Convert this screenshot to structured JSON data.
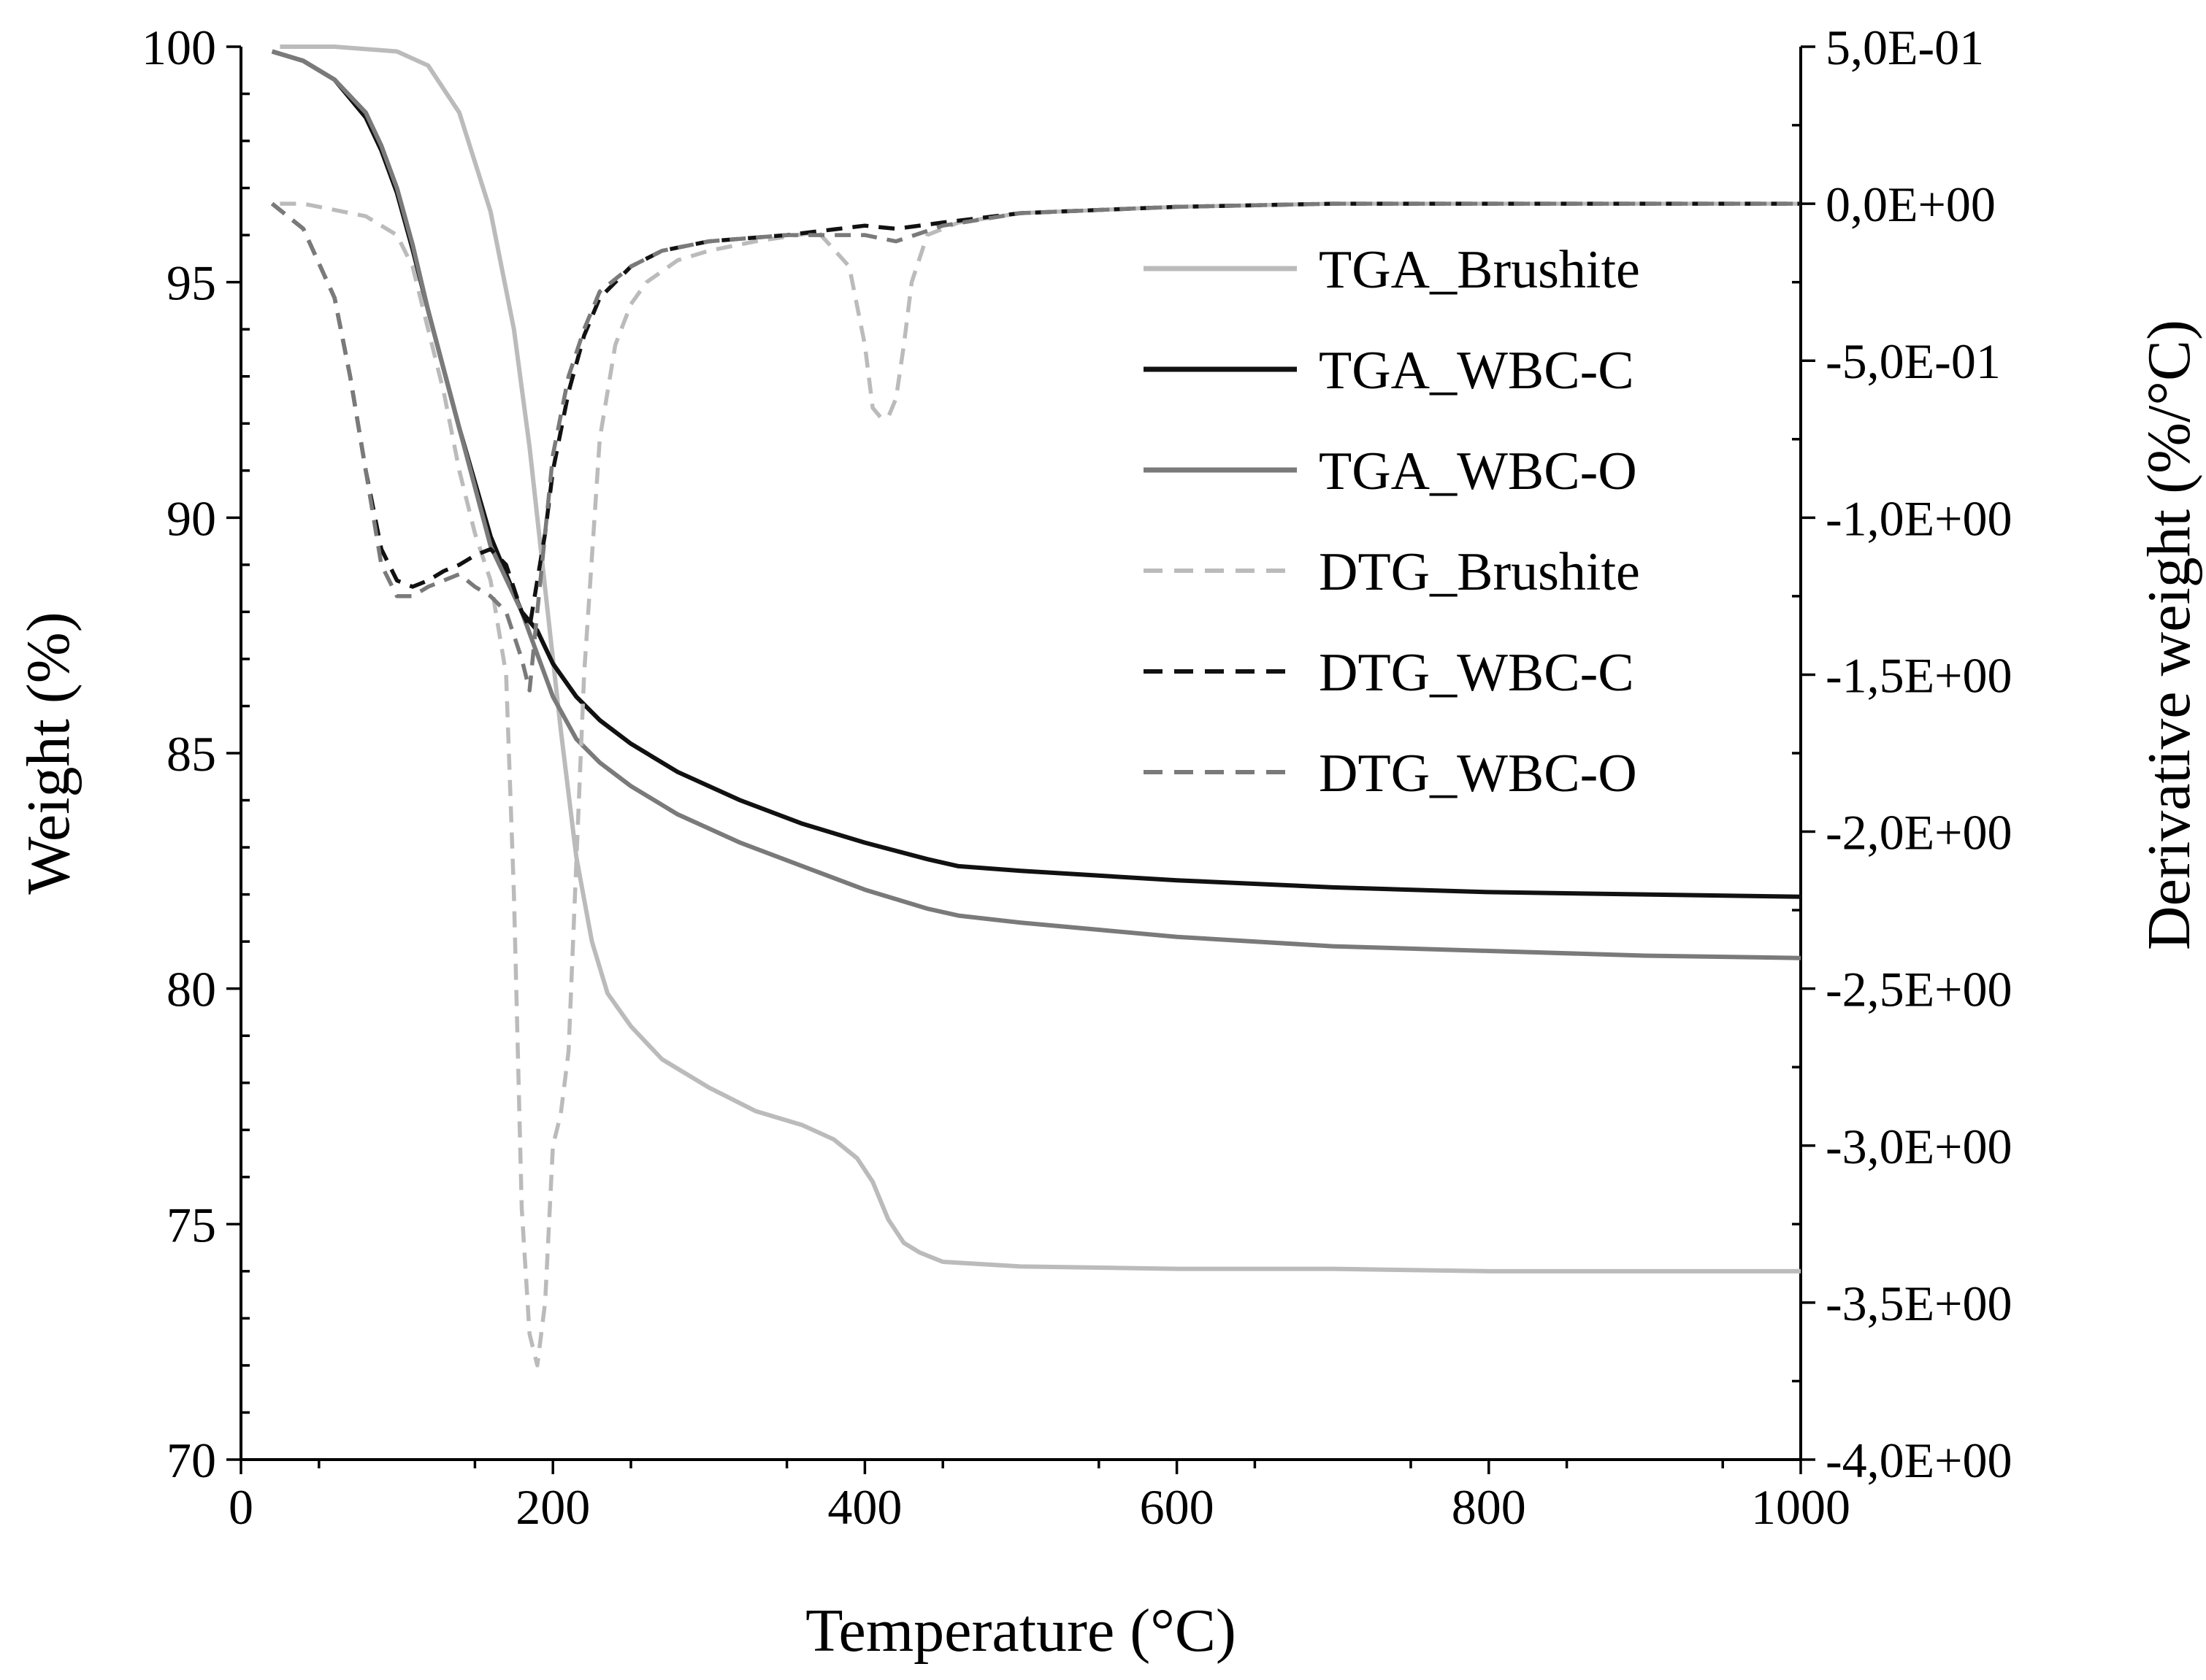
{
  "chart_data": {
    "type": "line",
    "xlabel": "Temperature (°C)",
    "ylabel": "Weight (%)",
    "y2label": "Derivative weight (%/°C)",
    "xlim": [
      0,
      1000
    ],
    "ylim": [
      70,
      100
    ],
    "y2lim": [
      -4.0,
      0.5
    ],
    "x_ticks": [
      "0",
      "200",
      "400",
      "600",
      "800",
      "1000"
    ],
    "y_ticks": [
      "70",
      "75",
      "80",
      "85",
      "90",
      "95",
      "100"
    ],
    "y2_ticks": [
      "5,0E-01",
      "0,0E+00",
      "-5,0E-01",
      "-1,0E+00",
      "-1,5E+00",
      "-2,0E+00",
      "-2,5E+00",
      "-3,0E+00",
      "-3,5E+00",
      "-4,0E+00"
    ],
    "legend_position": "top-right",
    "grid": false,
    "series": [
      {
        "name": "TGA_Brushite",
        "axis": "left",
        "color": "#bbbbbb",
        "dash": "solid",
        "x": [
          25,
          60,
          100,
          120,
          140,
          160,
          175,
          185,
          195,
          205,
          215,
          225,
          235,
          250,
          270,
          300,
          330,
          360,
          380,
          395,
          405,
          415,
          425,
          435,
          450,
          500,
          600,
          700,
          800,
          900,
          1000
        ],
        "y": [
          100,
          100,
          99.9,
          99.6,
          98.6,
          96.5,
          94,
          91.5,
          88.5,
          85.5,
          82.8,
          81,
          79.9,
          79.2,
          78.5,
          77.9,
          77.4,
          77.1,
          76.8,
          76.4,
          75.9,
          75.1,
          74.6,
          74.4,
          74.2,
          74.1,
          74.05,
          74.05,
          74.0,
          74.0,
          74.0
        ]
      },
      {
        "name": "TGA_WBC-C",
        "axis": "left",
        "color": "#111111",
        "dash": "solid",
        "x": [
          20,
          40,
          60,
          80,
          90,
          100,
          110,
          120,
          140,
          160,
          180,
          190,
          200,
          215,
          230,
          250,
          280,
          320,
          360,
          400,
          440,
          460,
          500,
          550,
          600,
          700,
          800,
          900,
          1000
        ],
        "y": [
          99.9,
          99.7,
          99.3,
          98.5,
          97.8,
          96.9,
          95.7,
          94.4,
          91.9,
          89.6,
          88.0,
          87.6,
          86.9,
          86.2,
          85.7,
          85.2,
          84.6,
          84.0,
          83.5,
          83.1,
          82.75,
          82.6,
          82.5,
          82.4,
          82.3,
          82.15,
          82.05,
          82.0,
          81.95
        ]
      },
      {
        "name": "TGA_WBC-O",
        "axis": "left",
        "color": "#7a7a7a",
        "dash": "solid",
        "x": [
          20,
          40,
          60,
          80,
          90,
          100,
          110,
          120,
          140,
          160,
          180,
          190,
          200,
          215,
          230,
          250,
          280,
          320,
          360,
          400,
          440,
          460,
          500,
          550,
          600,
          700,
          800,
          900,
          1000
        ],
        "y": [
          99.9,
          99.7,
          99.3,
          98.6,
          97.9,
          97.0,
          95.8,
          94.4,
          91.9,
          89.4,
          88.0,
          87.1,
          86.2,
          85.3,
          84.8,
          84.3,
          83.7,
          83.1,
          82.6,
          82.1,
          81.7,
          81.55,
          81.4,
          81.25,
          81.1,
          80.9,
          80.8,
          80.7,
          80.65
        ]
      },
      {
        "name": "DTG_Brushite",
        "axis": "right",
        "color": "#bbbbbb",
        "dash": "dashed",
        "x": [
          25,
          40,
          60,
          80,
          100,
          110,
          120,
          130,
          140,
          150,
          160,
          170,
          175,
          180,
          185,
          190,
          195,
          200,
          205,
          210,
          215,
          220,
          230,
          240,
          250,
          260,
          280,
          300,
          330,
          370,
          390,
          400,
          405,
          410,
          415,
          420,
          425,
          430,
          440,
          460,
          500,
          600,
          700,
          800,
          900,
          1000
        ],
        "y": [
          0.0,
          0.0,
          -0.02,
          -0.04,
          -0.1,
          -0.2,
          -0.4,
          -0.6,
          -0.85,
          -1.05,
          -1.2,
          -1.5,
          -2.2,
          -3.2,
          -3.6,
          -3.7,
          -3.5,
          -3.0,
          -2.9,
          -2.7,
          -2.1,
          -1.5,
          -0.75,
          -0.45,
          -0.32,
          -0.25,
          -0.18,
          -0.15,
          -0.12,
          -0.09,
          -0.2,
          -0.45,
          -0.65,
          -0.68,
          -0.68,
          -0.62,
          -0.45,
          -0.25,
          -0.1,
          -0.06,
          -0.03,
          -0.01,
          0.0,
          0.0,
          0.0,
          0.0
        ]
      },
      {
        "name": "DTG_WBC-C",
        "axis": "right",
        "color": "#111111",
        "dash": "dashed",
        "x": [
          20,
          40,
          60,
          70,
          80,
          90,
          95,
          100,
          110,
          120,
          130,
          140,
          150,
          160,
          170,
          180,
          185,
          190,
          195,
          200,
          210,
          220,
          230,
          250,
          270,
          300,
          350,
          400,
          420,
          450,
          500,
          600,
          700,
          800,
          900,
          1000
        ],
        "y": [
          0.0,
          -0.08,
          -0.3,
          -0.55,
          -0.85,
          -1.1,
          -1.15,
          -1.2,
          -1.22,
          -1.2,
          -1.17,
          -1.15,
          -1.12,
          -1.1,
          -1.15,
          -1.3,
          -1.35,
          -1.2,
          -1.05,
          -0.85,
          -0.6,
          -0.42,
          -0.3,
          -0.2,
          -0.15,
          -0.12,
          -0.1,
          -0.07,
          -0.08,
          -0.06,
          -0.03,
          -0.01,
          0.0,
          0.0,
          0.0,
          0.0
        ]
      },
      {
        "name": "DTG_WBC-O",
        "axis": "right",
        "color": "#7a7a7a",
        "dash": "dashed",
        "x": [
          20,
          40,
          60,
          70,
          80,
          90,
          95,
          100,
          110,
          120,
          130,
          140,
          150,
          160,
          170,
          180,
          185,
          190,
          195,
          200,
          210,
          220,
          230,
          250,
          270,
          300,
          350,
          400,
          420,
          450,
          500,
          600,
          700,
          800,
          900,
          1000
        ],
        "y": [
          0.0,
          -0.08,
          -0.3,
          -0.55,
          -0.85,
          -1.15,
          -1.2,
          -1.25,
          -1.25,
          -1.22,
          -1.2,
          -1.18,
          -1.22,
          -1.25,
          -1.3,
          -1.45,
          -1.55,
          -1.3,
          -1.05,
          -0.8,
          -0.55,
          -0.4,
          -0.28,
          -0.2,
          -0.15,
          -0.12,
          -0.1,
          -0.1,
          -0.12,
          -0.07,
          -0.03,
          -0.01,
          0.0,
          0.0,
          0.0,
          0.0
        ]
      }
    ]
  }
}
